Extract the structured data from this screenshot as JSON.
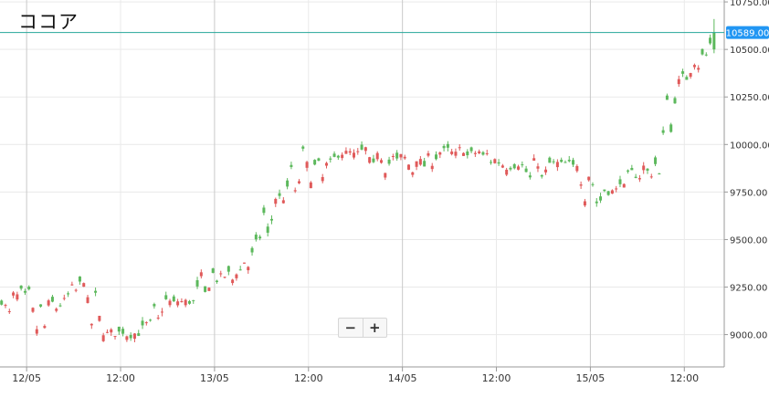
{
  "chart_data": {
    "type": "candlestick",
    "title": "ココア",
    "price_line": {
      "value": 10589.0,
      "label": "10589.00",
      "color": "#26a69a"
    },
    "y_ticks": [
      {
        "value": 9000,
        "label": "9000.00"
      },
      {
        "value": 9250,
        "label": "9250.00"
      },
      {
        "value": 9500,
        "label": "9500.00"
      },
      {
        "value": 9750,
        "label": "9750.00"
      },
      {
        "value": 10000,
        "label": "10000.00"
      },
      {
        "value": 10250,
        "label": "10250.00"
      },
      {
        "value": 10500,
        "label": "10500.00"
      },
      {
        "value": 10750,
        "label": "10750.00"
      }
    ],
    "x_ticks": [
      {
        "t": 0,
        "label": "12/05",
        "major": true
      },
      {
        "t": 12,
        "label": "12:00",
        "major": false
      },
      {
        "t": 24,
        "label": "13/05",
        "major": true
      },
      {
        "t": 36,
        "label": "12:00",
        "major": false
      },
      {
        "t": 48,
        "label": "14/05",
        "major": true
      },
      {
        "t": 60,
        "label": "12:00",
        "major": false
      },
      {
        "t": 72,
        "label": "15/05",
        "major": true
      },
      {
        "t": 84,
        "label": "12:00",
        "major": false
      }
    ],
    "x_range": [
      -3.4,
      89.1
    ],
    "y_range": [
      8830,
      10760
    ],
    "colors": {
      "up": "#5cb85c",
      "down": "#e05a5a",
      "grid": "#e9e9e9",
      "axis": "#9a9a9a"
    },
    "grid": true,
    "candle_interval_hours": 0.5,
    "candles": [],
    "key_points": [
      [
        9180,
        9050
      ],
      [
        9210,
        9100
      ],
      [
        9230,
        9200
      ],
      [
        9220,
        9180
      ],
      [
        9200,
        9000
      ],
      [
        9160,
        8980
      ],
      [
        9140,
        9170
      ],
      [
        9180,
        9180
      ],
      [
        9220,
        9270
      ],
      [
        9290,
        9300
      ],
      [
        9280,
        9020
      ],
      [
        9020,
        9010
      ],
      [
        9010,
        8990
      ],
      [
        9030,
        9010
      ],
      [
        9000,
        8990
      ],
      [
        9010,
        9010
      ],
      [
        9010,
        9060
      ],
      [
        9060,
        9180
      ],
      [
        9180,
        9190
      ],
      [
        9180,
        9160
      ],
      [
        9170,
        9170
      ],
      [
        9170,
        9180
      ],
      [
        9180,
        9330
      ],
      [
        9330,
        9300
      ],
      [
        9300,
        9260
      ],
      [
        9260,
        9320
      ],
      [
        9320,
        9360
      ],
      [
        9360,
        9430
      ],
      [
        9430,
        9500
      ],
      [
        9500,
        9720
      ],
      [
        9720,
        9680
      ],
      [
        9680,
        9720
      ],
      [
        9720,
        9960
      ],
      [
        9960,
        9880
      ],
      [
        9880,
        9800
      ],
      [
        9800,
        9900
      ],
      [
        9900,
        9960
      ],
      [
        9960,
        9960
      ],
      [
        9960,
        9950
      ],
      [
        9950,
        9930
      ],
      [
        9930,
        9980
      ],
      [
        9980,
        9870
      ],
      [
        9870,
        9900
      ],
      [
        9900,
        9940
      ],
      [
        9940,
        9950
      ],
      [
        9950,
        9860
      ],
      [
        9860,
        9900
      ],
      [
        9900,
        9960
      ],
      [
        9960,
        9960
      ],
      [
        9960,
        9970
      ],
      [
        9970,
        9940
      ],
      [
        9940,
        9980
      ],
      [
        9980,
        9960
      ],
      [
        9960,
        9920
      ],
      [
        9920,
        9880
      ],
      [
        9880,
        9890
      ],
      [
        9890,
        9890
      ],
      [
        9890,
        9910
      ],
      [
        9910,
        9810
      ],
      [
        9810,
        9900
      ],
      [
        9900,
        9890
      ],
      [
        9890,
        9900
      ],
      [
        9900,
        9900
      ],
      [
        9900,
        9870
      ],
      [
        9870,
        9690
      ],
      [
        9690,
        9760
      ],
      [
        9760,
        9720
      ],
      [
        9720,
        9750
      ],
      [
        9750,
        9850
      ],
      [
        9850,
        9900
      ],
      [
        9900,
        9830
      ],
      [
        9830,
        9840
      ],
      [
        9840,
        9950
      ],
      [
        9950,
        10320
      ],
      [
        10320,
        10350
      ],
      [
        10350,
        10380
      ],
      [
        10380,
        10450
      ],
      [
        10450,
        10500
      ],
      [
        10500,
        10589
      ]
    ]
  },
  "zoom": {
    "minus_label": "−",
    "plus_label": "+"
  }
}
